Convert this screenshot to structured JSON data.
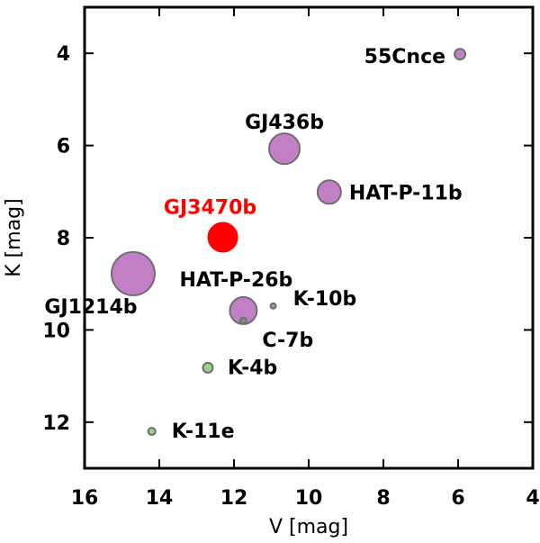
{
  "chart_data": {
    "type": "scatter",
    "xlabel": "V [mag]",
    "ylabel": "K [mag]",
    "xlim": [
      16,
      4
    ],
    "ylim": [
      13,
      3
    ],
    "x_ticks": [
      16,
      14,
      12,
      10,
      8,
      6,
      4
    ],
    "y_ticks": [
      4,
      6,
      8,
      10,
      12
    ],
    "x_tick_labels": [
      "16",
      "14",
      "12",
      "10",
      "8",
      "6",
      "4"
    ],
    "y_tick_labels": [
      "4",
      "6",
      "8",
      "10",
      "12"
    ],
    "grid": false,
    "points": [
      {
        "label": "55Cnce",
        "V": 5.95,
        "K": 4.02,
        "size": 0.6,
        "color": "#c27fc6",
        "label_color": "#000000"
      },
      {
        "label": "GJ436b",
        "V": 10.65,
        "K": 6.07,
        "size": 1.7,
        "color": "#c27fc6",
        "label_color": "#000000"
      },
      {
        "label": "HAT-P-11b",
        "V": 9.45,
        "K": 7.01,
        "size": 1.3,
        "color": "#c27fc6",
        "label_color": "#000000"
      },
      {
        "label": "GJ3470b",
        "V": 12.3,
        "K": 7.99,
        "size": 1.6,
        "color": "#ff0000",
        "label_color": "#ff0000"
      },
      {
        "label": "HAT-P-26b",
        "V": 11.75,
        "K": 9.58,
        "size": 1.5,
        "color": "#c27fc6",
        "label_color": "#000000"
      },
      {
        "label": "GJ1214b",
        "V": 14.7,
        "K": 8.78,
        "size": 2.4,
        "color": "#c27fc6",
        "label_color": "#000000"
      },
      {
        "label": "K-10b",
        "V": 10.95,
        "K": 9.48,
        "size": 0.3,
        "color": "#9a9a9a",
        "label_color": "#000000"
      },
      {
        "label": "C-7b",
        "V": 11.75,
        "K": 9.8,
        "size": 0.35,
        "color": "#8a8a8a",
        "label_color": "#000000"
      },
      {
        "label": "K-4b",
        "V": 12.7,
        "K": 10.82,
        "size": 0.55,
        "color": "#9fcf8a",
        "label_color": "#000000"
      },
      {
        "label": "K-11e",
        "V": 14.2,
        "K": 12.2,
        "size": 0.4,
        "color": "#9fcf8a",
        "label_color": "#000000"
      }
    ]
  }
}
